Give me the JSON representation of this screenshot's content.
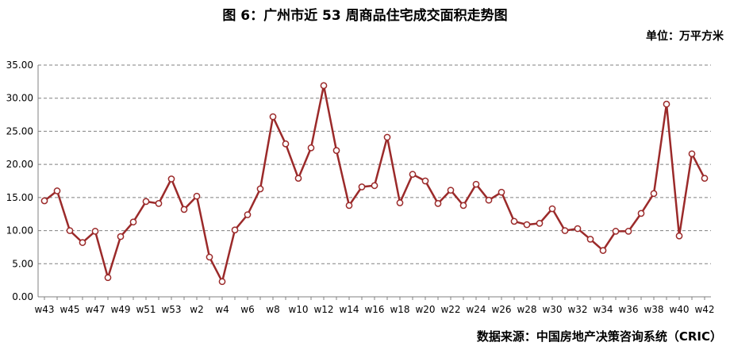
{
  "header": {
    "title": "图 6：广州市近 53 周商品住宅成交面积走势图",
    "unit": "单位：万平方米"
  },
  "footer": {
    "source": "数据来源：中国房地产决策咨询系统（CRIC）"
  },
  "colors": {
    "line": "#9b2a2a",
    "marker_fill": "#ffffff",
    "grid": "#808080",
    "axis": "#808080"
  },
  "chart_data": {
    "type": "line",
    "title": "图 6：广州市近 53 周商品住宅成交面积走势图",
    "unit": "单位：万平方米",
    "x": [
      "w43",
      "w44",
      "w45",
      "w46",
      "w47",
      "w48",
      "w49",
      "w50",
      "w51",
      "w52",
      "w53",
      "w1",
      "w2",
      "w3",
      "w4",
      "w5",
      "w6",
      "w7",
      "w8",
      "w9",
      "w10",
      "w11",
      "w12",
      "w13",
      "w14",
      "w15",
      "w16",
      "w17",
      "w18",
      "w19",
      "w20",
      "w21",
      "w22",
      "w23",
      "w24",
      "w25",
      "w26",
      "w27",
      "w28",
      "w29",
      "w30",
      "w31",
      "w32",
      "w33",
      "w34",
      "w35",
      "w36",
      "w37",
      "w38",
      "w39",
      "w40",
      "w41",
      "w42"
    ],
    "x_tick_labels": [
      "w43",
      "w45",
      "w47",
      "w49",
      "w51",
      "w53",
      "w2",
      "w4",
      "w6",
      "w8",
      "w10",
      "w12",
      "w14",
      "w16",
      "w18",
      "w20",
      "w22",
      "w24",
      "w26",
      "w28",
      "w30",
      "w32",
      "w34",
      "w36",
      "w38",
      "w40",
      "w42"
    ],
    "series": [
      {
        "values": [
          14.5,
          16.0,
          10.0,
          8.2,
          9.9,
          2.9,
          9.1,
          11.3,
          14.4,
          14.1,
          17.8,
          13.2,
          15.2,
          6.0,
          2.3,
          10.1,
          12.4,
          16.3,
          27.2,
          23.1,
          17.9,
          22.5,
          31.9,
          22.1,
          13.8,
          16.6,
          16.8,
          24.1,
          14.2,
          18.5,
          17.5,
          14.1,
          16.1,
          13.8,
          17.0,
          14.6,
          15.8,
          11.4,
          10.9,
          11.1,
          13.3,
          10.0,
          10.3,
          8.7,
          7.0,
          9.9,
          9.9,
          12.6,
          15.6,
          29.1,
          9.2,
          21.6,
          17.9
        ]
      }
    ],
    "y_ticks": [
      "0.00",
      "5.00",
      "10.00",
      "15.00",
      "20.00",
      "25.00",
      "30.00",
      "35.00"
    ],
    "ylim": [
      0,
      35
    ],
    "grid": "horizontal dashed",
    "legend": "none",
    "xlabel": "",
    "ylabel": ""
  }
}
